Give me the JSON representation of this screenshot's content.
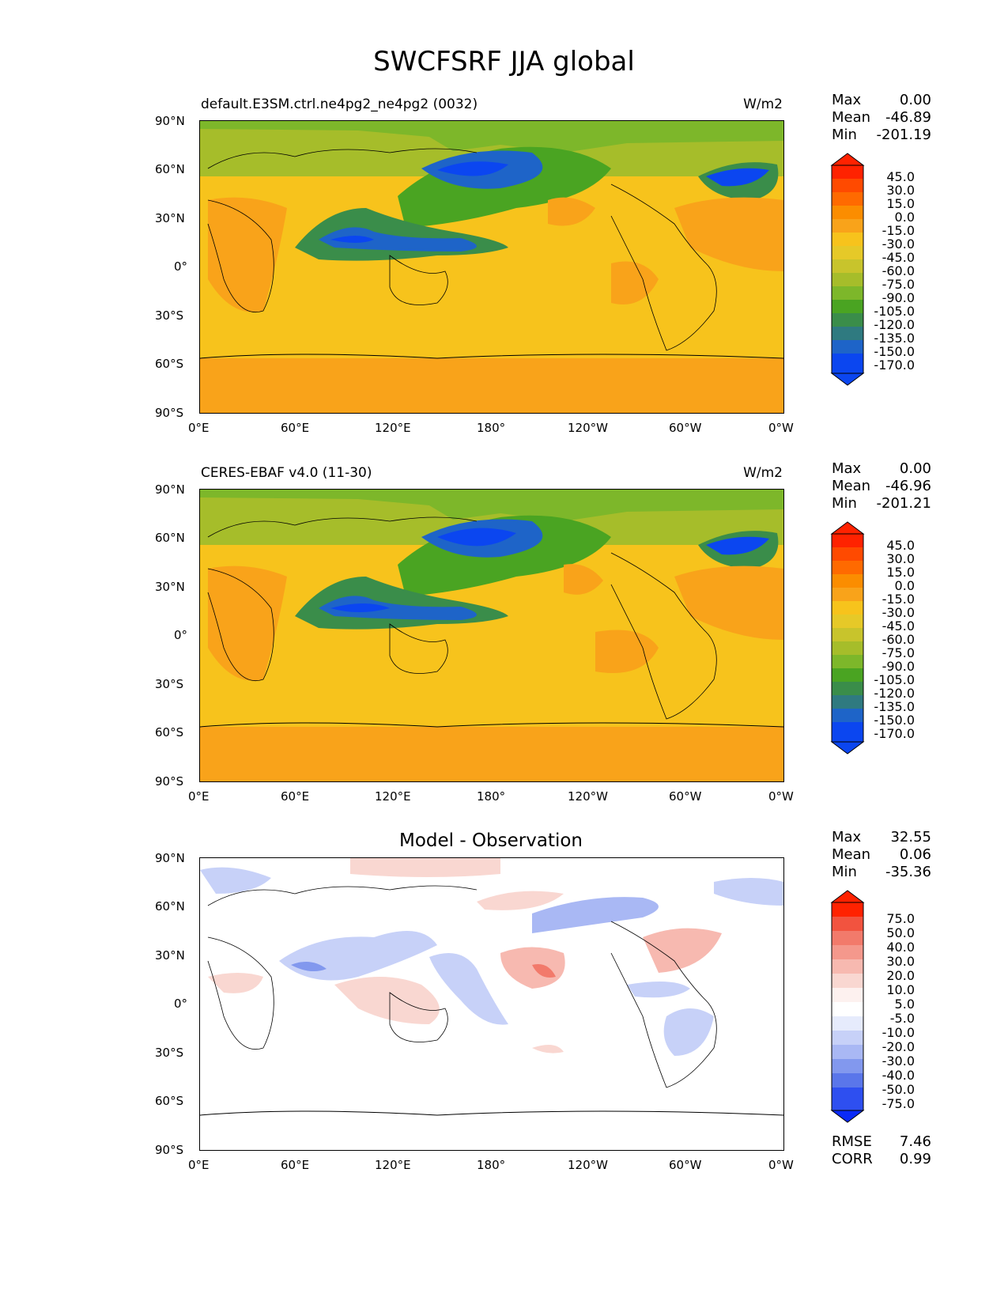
{
  "title": "SWCFSRF JJA global",
  "panels": [
    {
      "left_label": "default.E3SM.ctrl.ne4pg2_ne4pg2 (0032)",
      "center_label": "",
      "units": "W/m2",
      "stats": {
        "max_label": "Max",
        "max": "0.00",
        "mean_label": "Mean",
        "mean": "-46.89",
        "min_label": "Min",
        "min": "-201.19"
      },
      "colorbar_levels": [
        "45.0",
        "30.0",
        "15.0",
        "0.0",
        "-15.0",
        "-30.0",
        "-45.0",
        "-60.0",
        "-75.0",
        "-90.0",
        "-105.0",
        "-120.0",
        "-135.0",
        "-150.0",
        "-170.0"
      ]
    },
    {
      "left_label": "CERES-EBAF v4.0 (11-30)",
      "center_label": "",
      "units": "W/m2",
      "stats": {
        "max_label": "Max",
        "max": "0.00",
        "mean_label": "Mean",
        "mean": "-46.96",
        "min_label": "Min",
        "min": "-201.21"
      },
      "colorbar_levels": [
        "45.0",
        "30.0",
        "15.0",
        "0.0",
        "-15.0",
        "-30.0",
        "-45.0",
        "-60.0",
        "-75.0",
        "-90.0",
        "-105.0",
        "-120.0",
        "-135.0",
        "-150.0",
        "-170.0"
      ]
    },
    {
      "left_label": "",
      "center_label": "Model - Observation",
      "units": "",
      "stats": {
        "max_label": "Max",
        "max": "32.55",
        "mean_label": "Mean",
        "mean": "0.06",
        "min_label": "Min",
        "min": "-35.36"
      },
      "colorbar_levels": [
        "75.0",
        "50.0",
        "40.0",
        "30.0",
        "20.0",
        "10.0",
        "5.0",
        "-5.0",
        "-10.0",
        "-20.0",
        "-30.0",
        "-40.0",
        "-50.0",
        "-75.0"
      ],
      "metrics": {
        "rmse_label": "RMSE",
        "rmse": "7.46",
        "corr_label": "CORR",
        "corr": "0.99"
      }
    }
  ],
  "axes": {
    "lat_ticks": [
      "90°N",
      "60°N",
      "30°N",
      "0°",
      "30°S",
      "60°S",
      "90°S"
    ],
    "lon_ticks": [
      "0°E",
      "60°E",
      "120°E",
      "180°",
      "120°W",
      "60°W",
      "0°W"
    ]
  },
  "colors": {
    "field_scale": [
      "#ff2200",
      "#ff4a00",
      "#ff6a00",
      "#fb8d00",
      "#f9a31a",
      "#f7c31c",
      "#e6c928",
      "#c8c42c",
      "#a6bd2a",
      "#7db72a",
      "#4aa422",
      "#3a8d4a",
      "#2f7a80",
      "#1e64c8",
      "#0b46f0"
    ],
    "diff_scale": [
      "#ff2200",
      "#f2533f",
      "#f27a6b",
      "#f4988c",
      "#f7b9b0",
      "#f9d7d1",
      "#fdf1ef",
      "#ffffff",
      "#e6ebfc",
      "#c7d1f8",
      "#a9b8f4",
      "#8298ee",
      "#5a76ea",
      "#2e4ff0",
      "#0a2af8"
    ]
  }
}
